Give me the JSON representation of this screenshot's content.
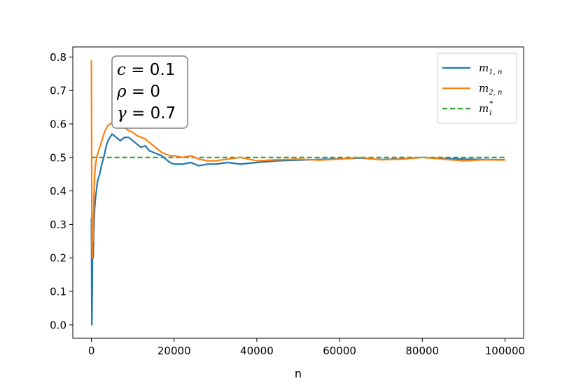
{
  "chart_data": {
    "type": "line",
    "xlabel": "n",
    "xlim": [
      -4500,
      104500
    ],
    "ylim": [
      -0.04,
      0.83
    ],
    "xticks": [
      0,
      20000,
      40000,
      60000,
      80000,
      100000
    ],
    "xtick_labels": [
      "0",
      "20000",
      "40000",
      "60000",
      "80000",
      "100000"
    ],
    "yticks": [
      0.0,
      0.1,
      0.2,
      0.3,
      0.4,
      0.5,
      0.6,
      0.7,
      0.8
    ],
    "ytick_labels": [
      "0.0",
      "0.1",
      "0.2",
      "0.3",
      "0.4",
      "0.5",
      "0.6",
      "0.7",
      "0.8"
    ],
    "grid": false,
    "legend_position": "top-right",
    "annotation": {
      "lines": [
        {
          "symbol": "c",
          "eq": " = 0.1"
        },
        {
          "symbol": "ρ",
          "eq": " = 0"
        },
        {
          "symbol": "γ",
          "eq": " = 0.7"
        }
      ]
    },
    "series": [
      {
        "name": "m1,n",
        "legend_main": "m",
        "legend_sub": "1, n",
        "color": "#1f77b4",
        "style": "solid",
        "x": [
          0,
          100,
          200,
          300,
          400,
          600,
          800,
          1000,
          1500,
          2000,
          2500,
          3000,
          3500,
          4000,
          4500,
          5000,
          6000,
          7000,
          8000,
          9000,
          10000,
          11000,
          12000,
          13000,
          14000,
          15000,
          16000,
          17000,
          18000,
          19000,
          20000,
          22000,
          24000,
          26000,
          28000,
          30000,
          33000,
          36000,
          40000,
          45000,
          50000,
          55000,
          60000,
          65000,
          70000,
          75000,
          80000,
          85000,
          90000,
          95000,
          100000
        ],
        "y": [
          0.32,
          0.0,
          0.1,
          0.32,
          0.2,
          0.28,
          0.35,
          0.38,
          0.43,
          0.45,
          0.48,
          0.5,
          0.53,
          0.55,
          0.56,
          0.57,
          0.56,
          0.55,
          0.56,
          0.56,
          0.55,
          0.54,
          0.53,
          0.535,
          0.52,
          0.515,
          0.51,
          0.505,
          0.495,
          0.485,
          0.48,
          0.48,
          0.485,
          0.475,
          0.48,
          0.48,
          0.485,
          0.48,
          0.485,
          0.49,
          0.492,
          0.494,
          0.496,
          0.498,
          0.494,
          0.496,
          0.5,
          0.497,
          0.495,
          0.494,
          0.493
        ]
      },
      {
        "name": "m2,n",
        "legend_main": "m",
        "legend_sub": "2, n",
        "color": "#ff7f0e",
        "style": "solid",
        "x": [
          0,
          100,
          200,
          300,
          400,
          600,
          800,
          1000,
          1500,
          2000,
          2500,
          3000,
          3500,
          4000,
          4500,
          5000,
          6000,
          7000,
          8000,
          9000,
          10000,
          11000,
          12000,
          13000,
          14000,
          15000,
          16000,
          17000,
          18000,
          19000,
          20000,
          22000,
          24000,
          26000,
          28000,
          30000,
          33000,
          36000,
          40000,
          45000,
          50000,
          55000,
          60000,
          65000,
          70000,
          75000,
          80000,
          85000,
          90000,
          95000,
          100000
        ],
        "y": [
          0.79,
          0.3,
          0.2,
          0.33,
          0.25,
          0.38,
          0.45,
          0.48,
          0.51,
          0.53,
          0.55,
          0.57,
          0.585,
          0.595,
          0.6,
          0.605,
          0.6,
          0.595,
          0.59,
          0.58,
          0.575,
          0.565,
          0.56,
          0.555,
          0.545,
          0.535,
          0.525,
          0.515,
          0.51,
          0.505,
          0.505,
          0.5,
          0.505,
          0.495,
          0.49,
          0.49,
          0.495,
          0.5,
          0.49,
          0.493,
          0.495,
          0.492,
          0.495,
          0.5,
          0.493,
          0.495,
          0.5,
          0.495,
          0.49,
          0.493,
          0.492
        ]
      },
      {
        "name": "m*i",
        "legend_main": "m",
        "legend_sub": "i",
        "legend_sup": "*",
        "color": "#2ca02c",
        "style": "dashed",
        "x": [
          0,
          100000
        ],
        "y": [
          0.5,
          0.5
        ]
      }
    ]
  }
}
